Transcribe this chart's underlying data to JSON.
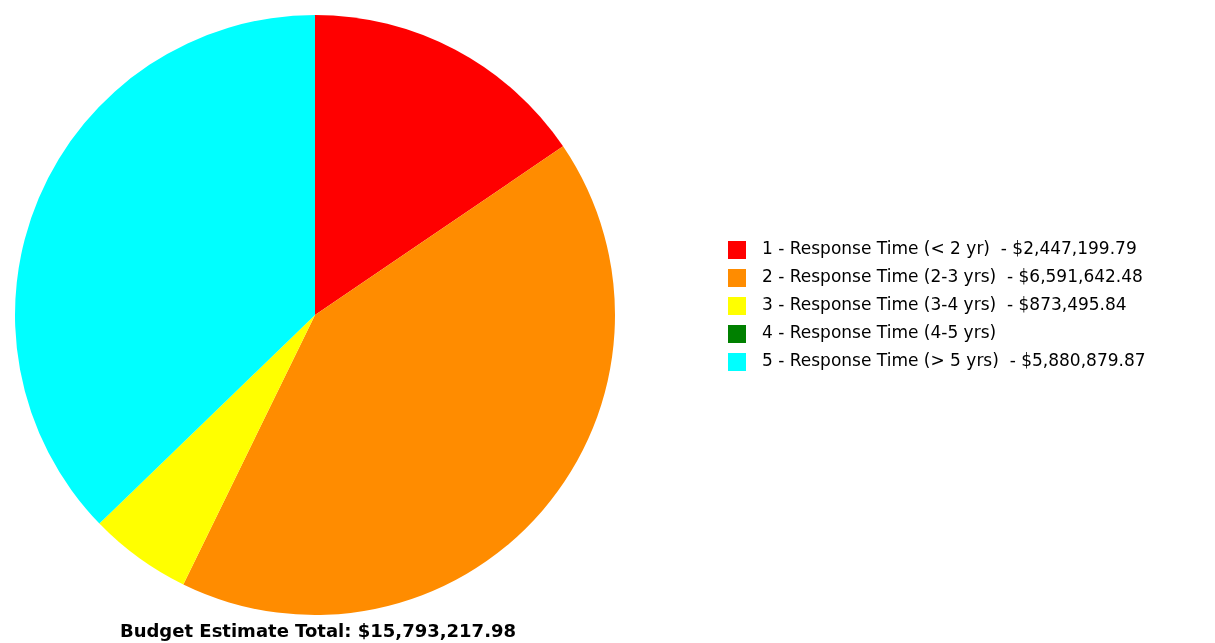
{
  "chart_data": {
    "type": "pie",
    "title": "Budget Estimate Total: $15,793,217.98",
    "categories": [
      "1 - Response Time (< 2 yr)",
      "2 - Response Time (2-3 yrs)",
      "3 - Response Time (3-4 yrs)",
      "4 - Response Time (4-5 yrs)",
      "5 - Response Time (> 5 yrs)"
    ],
    "values": [
      2447199.79,
      6591642.48,
      873495.84,
      0,
      5880879.87
    ],
    "value_labels": [
      "$2,447,199.79",
      "$6,591,642.48",
      "$873,495.84",
      null,
      "$5,880,879.87"
    ],
    "colors": [
      "#ff0000",
      "#ff8c00",
      "#ffff00",
      "#008000",
      "#00ffff"
    ],
    "legend": "right"
  }
}
